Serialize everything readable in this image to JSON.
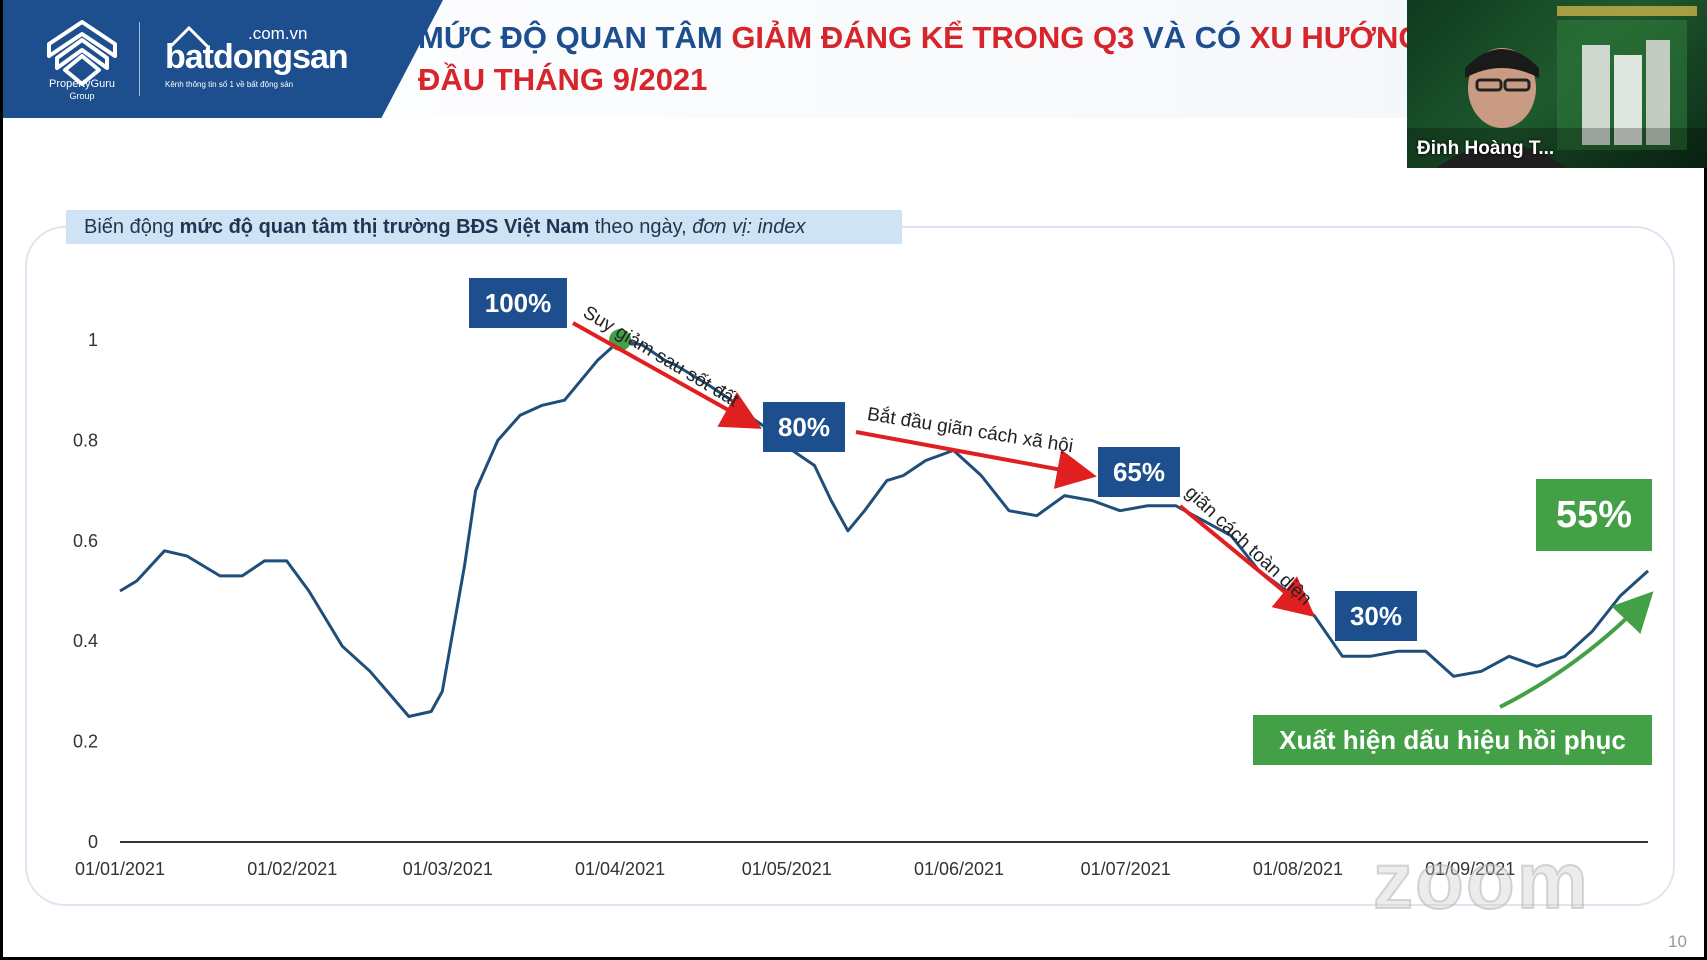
{
  "header": {
    "brand_group": "PropertyGuru",
    "brand_group_sub": "Group",
    "brand_domain": ".com.vn",
    "brand_name": "batdongsan",
    "brand_tagline": "Kênh thông tin số 1 về bất động sản",
    "title_part1": "MỨC ĐỘ QUAN TÂM ",
    "title_part2_red": "GIẢM ĐÁNG KỂ TRONG Q3",
    "title_part3": " VÀ CÓ ",
    "title_part4_red": "XU HƯỚNG",
    "title_line2": "ĐẦU THÁNG 9/2021",
    "brand_color": "#1d4f8e",
    "accent_color": "#d7262b"
  },
  "video": {
    "speaker_name": "Đinh Hoàng T..."
  },
  "chart_subtitle": {
    "part1": "Biến động ",
    "part2_bold": "mức độ quan tâm thị trường BĐS Việt Nam",
    "part3": " theo ngày, ",
    "part4_italic": "đơn vị: index"
  },
  "callouts": {
    "peak": "100%",
    "c80": "80%",
    "c65": "65%",
    "c30": "30%",
    "c55": "55%",
    "recovery": "Xuất hiện dấu hiệu hồi phục"
  },
  "annotations": {
    "a1": "Suy giảm sau sốt đất",
    "a2": "Bắt đầu giãn cách xã hội",
    "a3": "giãn cách toàn diện"
  },
  "watermark": "zoom",
  "page_number": "10",
  "chart_data": {
    "type": "line",
    "x_tick_labels": [
      "01/01/2021",
      "01/02/2021",
      "01/03/2021",
      "01/04/2021",
      "01/05/2021",
      "01/06/2021",
      "01/07/2021",
      "01/08/2021",
      "01/09/2021"
    ],
    "y_tick_labels": [
      "0",
      "0.2",
      "0.4",
      "0.6",
      "0.8",
      "1"
    ],
    "ylim": [
      0,
      1
    ],
    "grid": false,
    "series": [
      {
        "color": "#1f4e79",
        "x": [
          0,
          3,
          8,
          12,
          18,
          22,
          26,
          30,
          34,
          40,
          45,
          52,
          56,
          58,
          62,
          64,
          68,
          72,
          76,
          80,
          86,
          90,
          94,
          98,
          100,
          103,
          106,
          110,
          113,
          117,
          121,
          125,
          128,
          131,
          134,
          138,
          141,
          145,
          150,
          155,
          160,
          165,
          170,
          175,
          180,
          185,
          190,
          195,
          200,
          205,
          210,
          215,
          220,
          225,
          230,
          235,
          240,
          245,
          250
        ],
        "y": [
          0.5,
          0.52,
          0.58,
          0.57,
          0.53,
          0.53,
          0.56,
          0.56,
          0.5,
          0.39,
          0.34,
          0.25,
          0.26,
          0.3,
          0.55,
          0.7,
          0.8,
          0.85,
          0.87,
          0.88,
          0.96,
          1.0,
          0.99,
          0.96,
          0.95,
          0.93,
          0.91,
          0.88,
          0.85,
          0.82,
          0.78,
          0.75,
          0.68,
          0.62,
          0.66,
          0.72,
          0.73,
          0.76,
          0.78,
          0.73,
          0.66,
          0.65,
          0.69,
          0.68,
          0.66,
          0.67,
          0.67,
          0.64,
          0.61,
          0.54,
          0.5,
          0.45,
          0.37,
          0.37,
          0.38,
          0.38,
          0.33,
          0.34,
          0.37
        ],
        "x_extra": [
          255,
          260,
          265,
          270,
          275
        ],
        "y_extra": [
          0.35,
          0.37,
          0.42,
          0.49,
          0.54
        ]
      }
    ],
    "peak_marker": {
      "x": 90,
      "y": 1.0,
      "color": "#43a047"
    }
  }
}
